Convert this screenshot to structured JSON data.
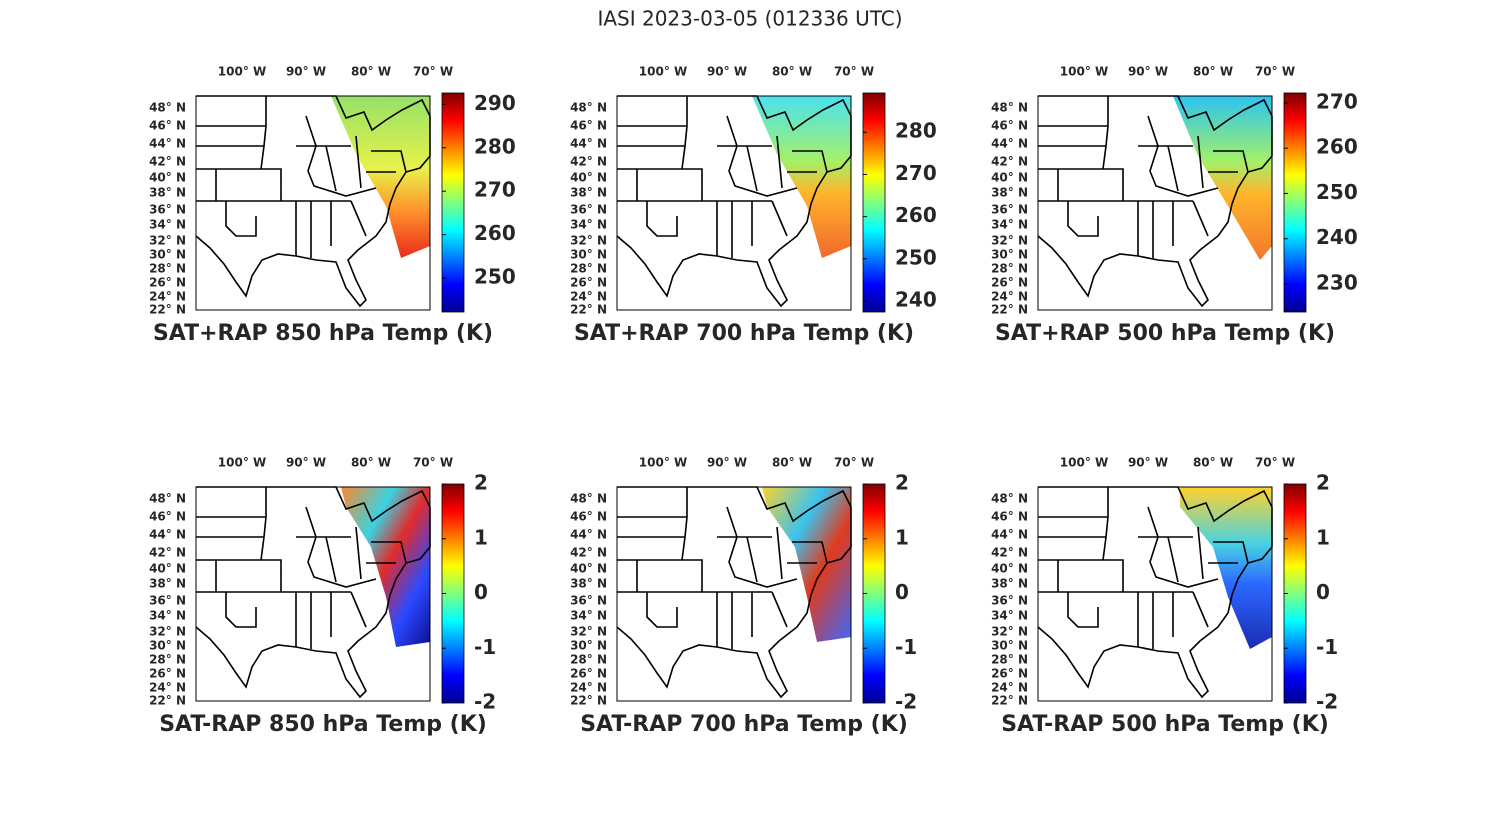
{
  "title": "IASI 2023-03-05 (012336 UTC)",
  "colormap": "jet",
  "lon_labels": [
    "100° W",
    "90° W",
    "80° W",
    "70° W"
  ],
  "lat_labels": [
    "48° N",
    "46° N",
    "44° N",
    "42° N",
    "40° N",
    "38° N",
    "36° N",
    "34° N",
    "32° N",
    "30° N",
    "28° N",
    "26° N",
    "24° N",
    "22° N"
  ],
  "panels": [
    {
      "title": "SAT+RAP 850 hPa Temp (K)",
      "clim": [
        242.2,
        292.6
      ],
      "cticks": [
        250,
        260,
        270,
        280,
        290
      ]
    },
    {
      "title": "SAT+RAP 700 hPa Temp (K)",
      "clim": [
        237.4,
        289.3
      ],
      "cticks": [
        240,
        250,
        260,
        270,
        280
      ]
    },
    {
      "title": "SAT+RAP 500 hPa Temp (K)",
      "clim": [
        223.8,
        272.2
      ],
      "cticks": [
        230,
        240,
        250,
        260,
        270
      ]
    },
    {
      "title": "SAT-RAP 850 hPa Temp (K)",
      "clim": [
        -2,
        2
      ],
      "cticks": [
        -2,
        -1,
        0,
        1,
        2
      ]
    },
    {
      "title": "SAT-RAP 700 hPa Temp (K)",
      "clim": [
        -2,
        2
      ],
      "cticks": [
        -2,
        -1,
        0,
        1,
        2
      ]
    },
    {
      "title": "SAT-RAP 500 hPa Temp (K)",
      "clim": [
        -2,
        2
      ],
      "cticks": [
        -2,
        -1,
        0,
        1,
        2
      ]
    }
  ]
}
